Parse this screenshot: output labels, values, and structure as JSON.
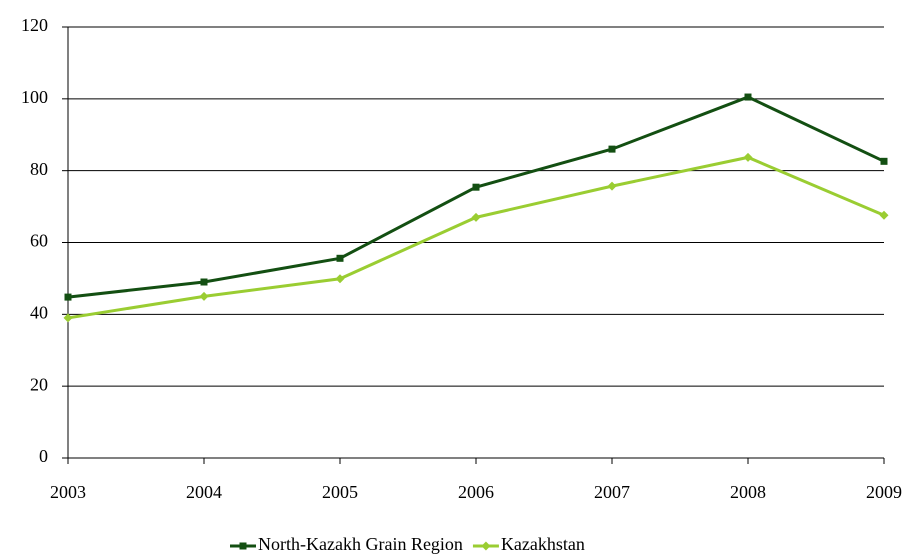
{
  "chart_data": {
    "type": "line",
    "categories": [
      "2003",
      "2004",
      "2005",
      "2006",
      "2007",
      "2008",
      "2009"
    ],
    "series": [
      {
        "name": "North-Kazakh Grain Region",
        "color": "#134f12",
        "marker": "square",
        "values": [
          44.8,
          49,
          55.6,
          75.4,
          86,
          100.5,
          82.6
        ]
      },
      {
        "name": "Kazakhstan",
        "color": "#9acd32",
        "marker": "diamond",
        "values": [
          39,
          45,
          49.9,
          67,
          75.7,
          83.7,
          67.6
        ]
      }
    ],
    "ylim": [
      0,
      120
    ],
    "yticks": [
      0,
      20,
      40,
      60,
      80,
      100,
      120
    ],
    "grid": true,
    "legend": "bottom"
  }
}
